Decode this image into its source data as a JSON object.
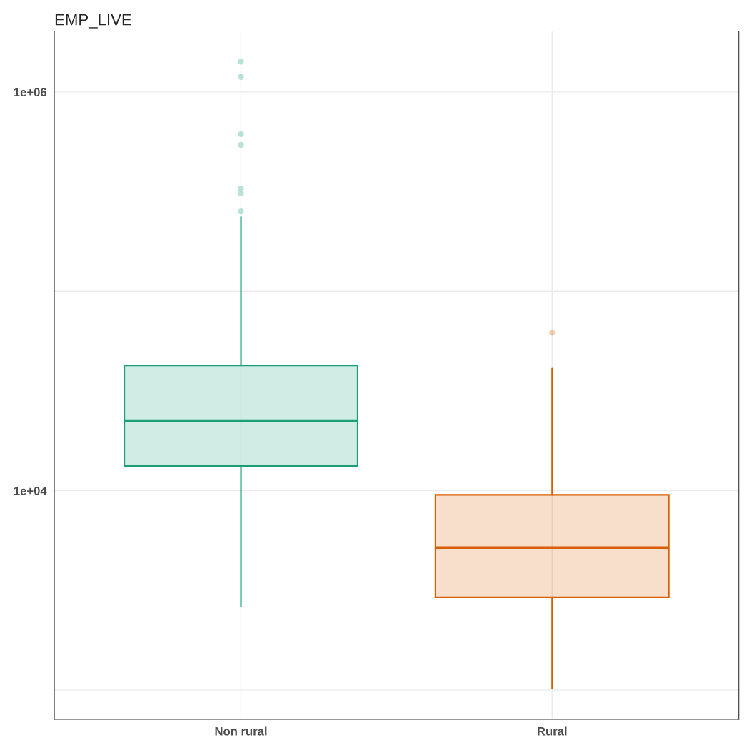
{
  "chart_data": {
    "type": "box",
    "title": "EMP_LIVE",
    "categories": [
      "Non rural",
      "Rural"
    ],
    "series": [
      {
        "color": "#1b9e77",
        "boxes": [
          {
            "low": 2620,
            "q1": 13300,
            "median": 22400,
            "q3": 42400,
            "high": 236000,
            "outliers": [
              1420000,
              1190000,
              615000,
              543000,
              328000,
              310000,
              252000
            ]
          },
          null
        ]
      },
      {
        "color": "#d95f02",
        "boxes": [
          null,
          {
            "low": 1015,
            "q1": 2920,
            "median": 5170,
            "q3": 9530,
            "high": 41300,
            "outliers": [
              62000
            ]
          }
        ]
      }
    ],
    "log": true,
    "ylim": [
      713,
      2020000
    ],
    "yticks": [
      {
        "value": 1000,
        "label": null
      },
      {
        "value": 10000,
        "label": "1e+04"
      },
      {
        "value": 100000,
        "label": null
      },
      {
        "value": 1000000,
        "label": "1e+06"
      }
    ],
    "grid": true,
    "legend": false
  }
}
